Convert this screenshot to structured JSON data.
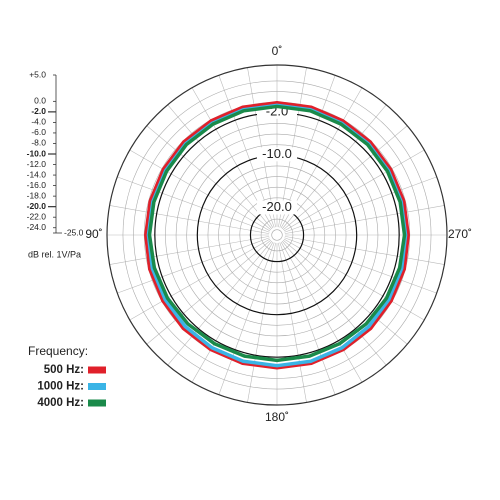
{
  "chart_data": {
    "type": "polar",
    "rlim": [
      -25,
      7
    ],
    "rgrid": [
      -24,
      -22,
      -18,
      -16,
      -14,
      -12,
      -8,
      -6,
      -4,
      0,
      2,
      4
    ],
    "rticks": [
      {
        "value": -2,
        "label": "-2.0"
      },
      {
        "value": -10,
        "label": "-10.0"
      },
      {
        "value": -20,
        "label": "-20.0"
      }
    ],
    "thetagrid": [
      0,
      10,
      20,
      30,
      40,
      50,
      60,
      70,
      80,
      90,
      100,
      110,
      120,
      130,
      140,
      150,
      160,
      170,
      180,
      190,
      200,
      210,
      220,
      230,
      240,
      250,
      260,
      270,
      280,
      290,
      300,
      310,
      320,
      330,
      340,
      350
    ],
    "thetaticks": [
      {
        "value": 0,
        "label": "0˚"
      },
      {
        "value": 90,
        "label": "90˚"
      },
      {
        "value": 180,
        "label": "180˚"
      },
      {
        "value": 270,
        "label": "270˚"
      }
    ],
    "theta": [
      0,
      15,
      30,
      45,
      60,
      75,
      90,
      105,
      120,
      135,
      150,
      165,
      180,
      195,
      210,
      225,
      240,
      255,
      270,
      285,
      300,
      315,
      330,
      345
    ],
    "legend_title": "Frequency:",
    "series": [
      {
        "name": "500 Hz:",
        "color": "#e0202a",
        "values": [
          -0.1,
          -0.1,
          -0.2,
          -0.2,
          -0.3,
          -0.3,
          -0.3,
          -0.2,
          -0.2,
          -0.1,
          -0.1,
          0,
          0,
          0,
          -0.1,
          -0.1,
          -0.2,
          -0.2,
          -0.3,
          -0.3,
          -0.3,
          -0.2,
          -0.2,
          -0.1
        ]
      },
      {
        "name": "1000 Hz:",
        "color": "#3ab4e6",
        "values": [
          -0.6,
          -0.6,
          -0.7,
          -0.7,
          -0.8,
          -0.8,
          -0.8,
          -0.7,
          -0.7,
          -0.6,
          -0.5,
          -0.4,
          -0.4,
          -0.4,
          -0.5,
          -0.6,
          -0.7,
          -0.7,
          -0.8,
          -0.8,
          -0.8,
          -0.7,
          -0.7,
          -0.6
        ]
      },
      {
        "name": "4000 Hz:",
        "color": "#1a8a4a",
        "values": [
          -0.8,
          -0.8,
          -0.9,
          -0.9,
          -1.0,
          -1.0,
          -1.0,
          -1.1,
          -1.2,
          -1.3,
          -1.4,
          -1.4,
          -1.4,
          -1.4,
          -1.4,
          -1.3,
          -1.2,
          -1.1,
          -1.0,
          -1.0,
          -1.0,
          -0.9,
          -0.9,
          -0.8
        ]
      }
    ],
    "scale": {
      "label": "dB rel. 1V/Pa",
      "ylim": [
        -25,
        5
      ],
      "yticks": [
        {
          "value": 5,
          "label": "+5.0"
        },
        {
          "value": 0,
          "label": "0.0"
        },
        {
          "value": -2,
          "label": "-2.0",
          "bold": true
        },
        {
          "value": -4,
          "label": "-4.0"
        },
        {
          "value": -6,
          "label": "-6.0"
        },
        {
          "value": -8,
          "label": "-8.0"
        },
        {
          "value": -10,
          "label": "-10.0",
          "bold": true
        },
        {
          "value": -12,
          "label": "-12.0"
        },
        {
          "value": -14,
          "label": "-14.0"
        },
        {
          "value": -16,
          "label": "-16.0"
        },
        {
          "value": -18,
          "label": "-18.0"
        },
        {
          "value": -20,
          "label": "-20.0",
          "bold": true
        },
        {
          "value": -22,
          "label": "-22.0"
        },
        {
          "value": -24,
          "label": "-24.0"
        },
        {
          "value": -25,
          "label": "-25.0"
        }
      ]
    }
  }
}
